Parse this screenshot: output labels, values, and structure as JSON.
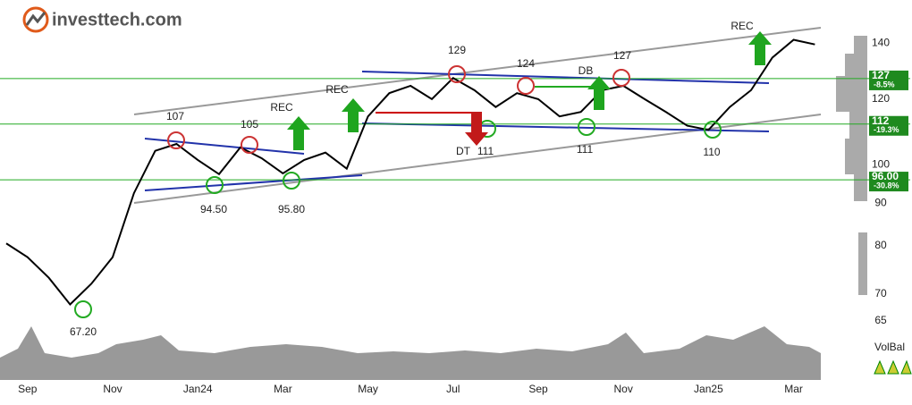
{
  "logo": "investtech.com",
  "chart_data": {
    "type": "line",
    "log_scale": true,
    "categories": [
      null,
      "Sep",
      null,
      null,
      null,
      "Nov",
      null,
      null,
      null,
      "Jan24",
      null,
      null,
      null,
      "Mar",
      null,
      null,
      null,
      "May",
      null,
      null,
      null,
      "Jul",
      null,
      null,
      null,
      "Sep",
      null,
      null,
      null,
      "Nov",
      null,
      null,
      null,
      "Jan25",
      null,
      null,
      null,
      "Mar",
      null
    ],
    "series": [
      {
        "name": "Price",
        "color": "#000000",
        "values": [
          80.5,
          77.5,
          73.2,
          68,
          72,
          77.5,
          92.5,
          104,
          106,
          101.4,
          97.5,
          105,
          101.9,
          97.7,
          101.4,
          103.5,
          99,
          114.4,
          122,
          124.5,
          120,
          127.2,
          123,
          117.4,
          122,
          120,
          114.4,
          115.8,
          123,
          124.5,
          120,
          115.8,
          111.5,
          110.2,
          117.4,
          123,
          134.6,
          141.4,
          139.6
        ]
      }
    ],
    "ylim": [
      64,
      154
    ],
    "yticks": [
      65,
      70,
      80,
      90,
      100,
      120,
      140
    ],
    "levels": [
      {
        "value": 127,
        "label": "127",
        "change": "-8.5%"
      },
      {
        "value": 112,
        "label": "112",
        "change": "-19.3%"
      },
      {
        "value": 96,
        "label": "96.00",
        "change": "-30.8%"
      }
    ],
    "annotations": [
      "107",
      "105",
      "94.50",
      "95.80",
      "67.20",
      "129",
      "124",
      "127",
      "111",
      "111",
      "110",
      "REC",
      "REC",
      "REC",
      "DT",
      "DB"
    ],
    "volume_label": "VolBal"
  }
}
